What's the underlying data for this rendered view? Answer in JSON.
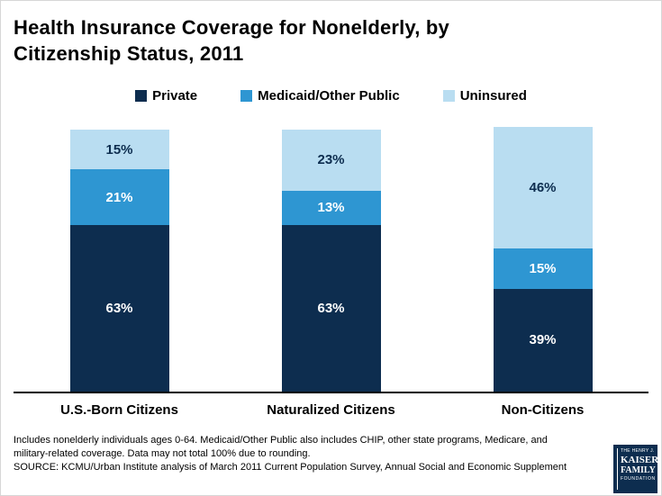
{
  "title": "Health Insurance Coverage for Nonelderly, by Citizenship Status, 2011",
  "chart_data": {
    "type": "bar",
    "stacked": true,
    "title": "Health Insurance Coverage for Nonelderly, by Citizenship Status, 2011",
    "categories": [
      "U.S.-Born Citizens",
      "Naturalized Citizens",
      "Non-Citizens"
    ],
    "series": [
      {
        "name": "Private",
        "values": [
          63,
          63,
          39
        ],
        "color": "#0d2d4f",
        "label_color": "#ffffff"
      },
      {
        "name": "Medicaid/Other Public",
        "values": [
          21,
          13,
          15
        ],
        "color": "#2e96d2",
        "label_color": "#ffffff"
      },
      {
        "name": "Uninsured",
        "values": [
          15,
          23,
          46
        ],
        "color": "#b9ddf1",
        "label_color": "#0d2d4f"
      }
    ],
    "value_suffix": "%",
    "ylim": [
      0,
      100
    ],
    "grid": false,
    "legend_position": "top",
    "xlabel": "",
    "ylabel": ""
  },
  "footnote": "Includes nonelderly individuals ages 0-64. Medicaid/Other Public also includes CHIP, other state programs, Medicare, and military-related coverage. Data may not total 100% due to rounding.",
  "source": "SOURCE: KCMU/Urban Institute analysis of March 2011 Current Population Survey, Annual Social and Economic Supplement",
  "logo": {
    "line1": "THE HENRY J.",
    "line2": "KAISER",
    "line3": "FAMILY",
    "line4": "FOUNDATION"
  },
  "colors": {
    "navy": "#0d2d4f",
    "medium_blue": "#2e96d2",
    "light_blue": "#b9ddf1"
  }
}
